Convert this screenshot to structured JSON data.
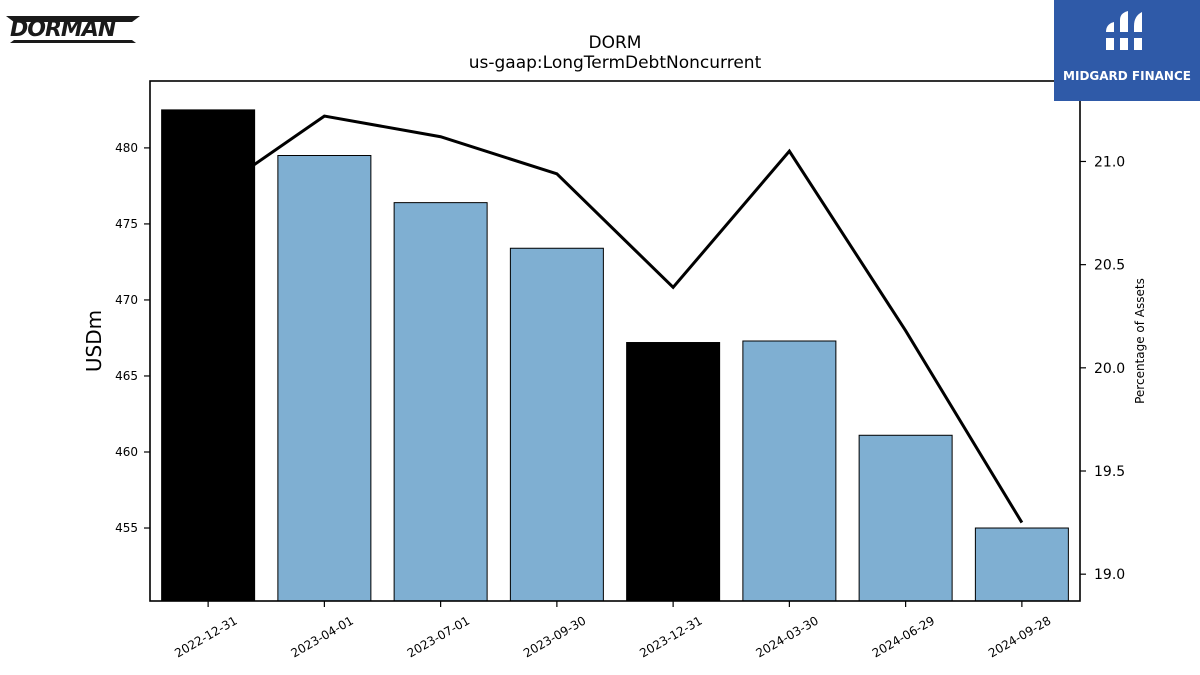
{
  "header": {
    "title": "DORM",
    "subtitle": "us-gaap:LongTermDebtNoncurrent"
  },
  "logos": {
    "left_text": "DORMAN",
    "right_text": "MIDGARD FINANCE"
  },
  "colors": {
    "bar_light": "#7fafd2",
    "bar_dark": "#000000",
    "line": "#000000",
    "logo_bg": "#2f5aa8"
  },
  "chart_data": {
    "type": "bar",
    "categories": [
      "2022-12-31",
      "2023-04-01",
      "2023-07-01",
      "2023-09-30",
      "2023-12-31",
      "2024-03-30",
      "2024-06-29",
      "2024-09-28"
    ],
    "series": [
      {
        "values": [
          482.5,
          479.5,
          476.4,
          473.4,
          467.2,
          467.3,
          461.1,
          455.0
        ],
        "axis": "left"
      },
      {
        "type": "line",
        "values": [
          20.83,
          21.22,
          21.12,
          20.94,
          20.39,
          21.05,
          20.18,
          19.25
        ],
        "axis": "right"
      }
    ],
    "bar_colors": [
      "dark",
      "light",
      "light",
      "light",
      "dark",
      "light",
      "light",
      "light"
    ],
    "ylabel": "USDm",
    "ylabel_right": "Percentage of Assets",
    "ylim": [
      450.2,
      484.4
    ],
    "ylim_right": [
      18.87,
      21.39
    ],
    "yticks": [
      455,
      460,
      465,
      470,
      475,
      480
    ],
    "yticks_right": [
      "19.0",
      "19.5",
      "20.0",
      "20.5",
      "21.0"
    ],
    "grid": false
  }
}
